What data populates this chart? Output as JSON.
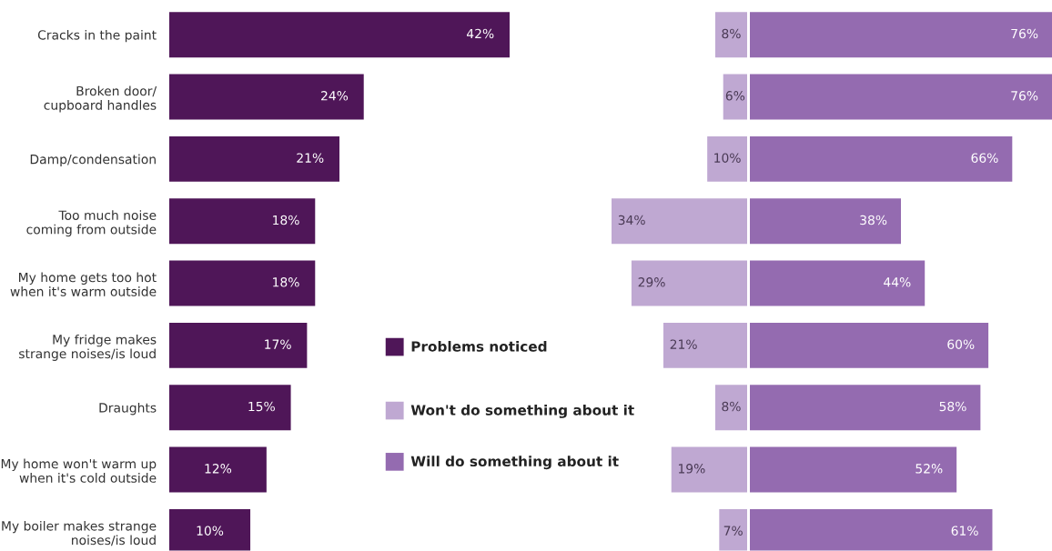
{
  "chart_data": [
    {
      "type": "bar",
      "orientation": "horizontal",
      "categories": [
        "Cracks in the paint",
        "Broken door/\ncupboard handles",
        "Damp/condensation",
        "Too much noise\ncoming from outside",
        "My home gets too hot\nwhen it's warm outside",
        "My fridge makes\nstrange noises/is loud",
        "Draughts",
        "My home won't warm up\nwhen it's cold outside",
        "My boiler makes strange\nnoises/is loud"
      ],
      "xlim": [
        0,
        42
      ],
      "tick_labels": "y",
      "grid": false,
      "legend": "right",
      "series": [
        {
          "name": "Problems noticed",
          "color": "#4f1658",
          "values": [
            42,
            24,
            21,
            18,
            18,
            17,
            15,
            12,
            10
          ],
          "value_labels": [
            "42%",
            "24%",
            "21%",
            "18%",
            "18%",
            "17%",
            "15%",
            "12%",
            "10%"
          ]
        }
      ]
    },
    {
      "type": "bar",
      "orientation": "horizontal",
      "categories": [
        null,
        null,
        null,
        null,
        null,
        null,
        null,
        null,
        null
      ],
      "xlim": [
        34,
        0
      ],
      "tick_labels": false,
      "grid": false,
      "legend": "left",
      "series": [
        {
          "name": "Won't do something about it",
          "color": "#bfa8d2",
          "values": [
            8,
            6,
            10,
            34,
            29,
            21,
            8,
            19,
            7
          ],
          "value_labels": [
            "8%",
            "6%",
            "10%",
            "34%",
            "29%",
            "21%",
            "8%",
            "19%",
            "7%"
          ]
        }
      ]
    },
    {
      "type": "bar",
      "orientation": "horizontal",
      "categories": [
        null,
        null,
        null,
        null,
        null,
        null,
        null,
        null,
        null
      ],
      "xlim": [
        0,
        76
      ],
      "tick_labels": false,
      "grid": false,
      "legend": "left",
      "series": [
        {
          "name": "Will do something about it",
          "color": "#946bb0",
          "values": [
            76,
            76,
            66,
            38,
            44,
            60,
            58,
            52,
            61
          ],
          "value_labels": [
            "76%",
            "76%",
            "66%",
            "38%",
            "44%",
            "60%",
            "58%",
            "52%",
            "61%"
          ]
        }
      ]
    }
  ]
}
